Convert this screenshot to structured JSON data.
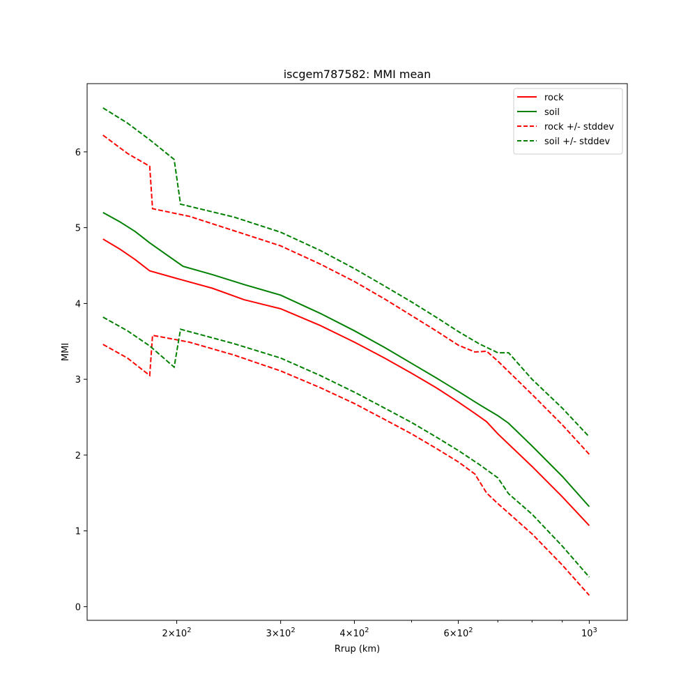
{
  "chart_data": {
    "type": "line",
    "title": "iscgem787582: MMI mean",
    "xlabel": "Rrup (km)",
    "ylabel": "MMI",
    "xscale": "log",
    "xlim": [
      141,
      1160
    ],
    "ylim": [
      -0.18,
      6.9
    ],
    "x_ticks": [
      {
        "value": 200,
        "base": "2",
        "exp": "2"
      },
      {
        "value": 300,
        "base": "3",
        "exp": "2"
      },
      {
        "value": 400,
        "base": "4",
        "exp": "2"
      },
      {
        "value": 600,
        "base": "6",
        "exp": "2"
      },
      {
        "value": 1000,
        "base": "10",
        "exp": "3"
      }
    ],
    "x_minor_ticks": [
      500,
      700,
      800,
      900
    ],
    "y_ticks": [
      {
        "value": 0,
        "label": "0"
      },
      {
        "value": 1,
        "label": "1"
      },
      {
        "value": 2,
        "label": "2"
      },
      {
        "value": 3,
        "label": "3"
      },
      {
        "value": 4,
        "label": "4"
      },
      {
        "value": 5,
        "label": "5"
      },
      {
        "value": 6,
        "label": "6"
      }
    ],
    "grid": false,
    "legend_position": "top-right",
    "series": [
      {
        "name": "rock",
        "color": "#ff0000",
        "dash": "solid",
        "points": [
          [
            150,
            4.85
          ],
          [
            160,
            4.72
          ],
          [
            170,
            4.58
          ],
          [
            180,
            4.43
          ],
          [
            200,
            4.33
          ],
          [
            230,
            4.2
          ],
          [
            260,
            4.05
          ],
          [
            300,
            3.93
          ],
          [
            350,
            3.71
          ],
          [
            400,
            3.49
          ],
          [
            450,
            3.28
          ],
          [
            500,
            3.08
          ],
          [
            550,
            2.89
          ],
          [
            600,
            2.7
          ],
          [
            640,
            2.55
          ],
          [
            670,
            2.44
          ],
          [
            700,
            2.28
          ],
          [
            800,
            1.85
          ],
          [
            900,
            1.45
          ],
          [
            1000,
            1.07
          ]
        ]
      },
      {
        "name": "soil",
        "color": "#008000",
        "dash": "solid",
        "points": [
          [
            150,
            5.2
          ],
          [
            160,
            5.08
          ],
          [
            170,
            4.95
          ],
          [
            180,
            4.8
          ],
          [
            205,
            4.49
          ],
          [
            230,
            4.38
          ],
          [
            260,
            4.25
          ],
          [
            300,
            4.11
          ],
          [
            350,
            3.87
          ],
          [
            400,
            3.64
          ],
          [
            450,
            3.42
          ],
          [
            500,
            3.21
          ],
          [
            550,
            3.02
          ],
          [
            600,
            2.84
          ],
          [
            650,
            2.67
          ],
          [
            700,
            2.52
          ],
          [
            730,
            2.42
          ],
          [
            800,
            2.12
          ],
          [
            900,
            1.72
          ],
          [
            1000,
            1.32
          ]
        ]
      },
      {
        "name": "rock +/- stddev",
        "color": "#ff0000",
        "dash": "dashed",
        "points": [
          [
            150,
            6.22
          ],
          [
            165,
            5.98
          ],
          [
            180,
            5.81
          ],
          [
            182,
            5.25
          ],
          [
            210,
            5.15
          ],
          [
            250,
            4.96
          ],
          [
            300,
            4.76
          ],
          [
            350,
            4.52
          ],
          [
            400,
            4.29
          ],
          [
            450,
            4.06
          ],
          [
            500,
            3.84
          ],
          [
            550,
            3.64
          ],
          [
            600,
            3.45
          ],
          [
            640,
            3.36
          ],
          [
            670,
            3.37
          ],
          [
            700,
            3.24
          ],
          [
            800,
            2.8
          ],
          [
            900,
            2.4
          ],
          [
            1000,
            2.01
          ]
        ]
      },
      {
        "name": "soil +/- stddev",
        "color": "#008000",
        "dash": "dashed",
        "points": [
          [
            150,
            6.58
          ],
          [
            165,
            6.38
          ],
          [
            180,
            6.16
          ],
          [
            198,
            5.9
          ],
          [
            203,
            5.31
          ],
          [
            250,
            5.14
          ],
          [
            300,
            4.94
          ],
          [
            350,
            4.7
          ],
          [
            400,
            4.46
          ],
          [
            450,
            4.23
          ],
          [
            500,
            4.02
          ],
          [
            550,
            3.82
          ],
          [
            600,
            3.63
          ],
          [
            650,
            3.47
          ],
          [
            700,
            3.35
          ],
          [
            730,
            3.35
          ],
          [
            800,
            3.0
          ],
          [
            900,
            2.62
          ],
          [
            1000,
            2.24
          ]
        ]
      },
      {
        "name": "",
        "color": "#ff0000",
        "dash": "dashed",
        "points": [
          [
            150,
            3.46
          ],
          [
            165,
            3.28
          ],
          [
            180,
            3.05
          ],
          [
            182,
            3.58
          ],
          [
            210,
            3.49
          ],
          [
            250,
            3.32
          ],
          [
            300,
            3.11
          ],
          [
            350,
            2.89
          ],
          [
            400,
            2.68
          ],
          [
            450,
            2.47
          ],
          [
            500,
            2.28
          ],
          [
            550,
            2.09
          ],
          [
            600,
            1.91
          ],
          [
            640,
            1.75
          ],
          [
            670,
            1.5
          ],
          [
            700,
            1.36
          ],
          [
            800,
            0.96
          ],
          [
            900,
            0.55
          ],
          [
            1000,
            0.15
          ]
        ]
      },
      {
        "name": "",
        "color": "#008000",
        "dash": "dashed",
        "points": [
          [
            150,
            3.82
          ],
          [
            165,
            3.64
          ],
          [
            180,
            3.44
          ],
          [
            198,
            3.16
          ],
          [
            203,
            3.66
          ],
          [
            250,
            3.47
          ],
          [
            300,
            3.28
          ],
          [
            350,
            3.05
          ],
          [
            400,
            2.83
          ],
          [
            450,
            2.62
          ],
          [
            500,
            2.43
          ],
          [
            550,
            2.24
          ],
          [
            600,
            2.06
          ],
          [
            650,
            1.88
          ],
          [
            700,
            1.7
          ],
          [
            730,
            1.49
          ],
          [
            800,
            1.22
          ],
          [
            900,
            0.8
          ],
          [
            1000,
            0.39
          ]
        ]
      }
    ]
  }
}
